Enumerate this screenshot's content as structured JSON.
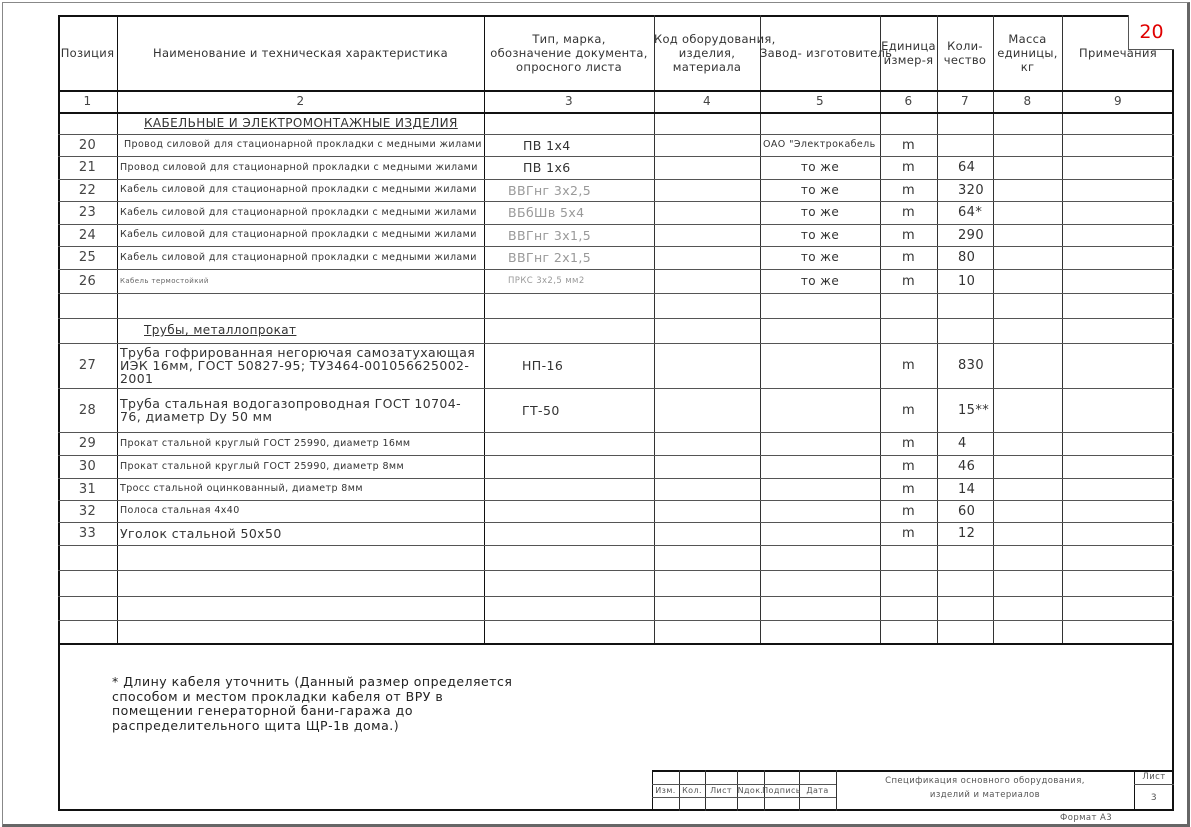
{
  "sheet_badge": "20",
  "headers": [
    "Позиция",
    "Наименование и техническая характеристика",
    "Тип, марка, обозначение документа, опросного листа",
    "Код оборудования, изделия, материала",
    "Завод- изготовитель",
    "Единица измер-я",
    "Коли- чество",
    "Масса единицы, кг",
    "Примечания"
  ],
  "column_numbers": [
    "1",
    "2",
    "3",
    "4",
    "5",
    "6",
    "7",
    "8",
    "9"
  ],
  "rows": [
    {
      "section": "КАБЕЛЬНЫЕ И ЭЛЕКТРОМОНТАЖНЫЕ ИЗДЕЛИЯ"
    },
    {
      "pos": "20",
      "name": "Провод силовой для стационарной прокладки с медными жилами",
      "type": "ПВ 1х4",
      "maker": "ОАО \"Электрокабель",
      "unit": "m",
      "qty": ""
    },
    {
      "pos": "21",
      "name": "Провод силовой для стационарной прокладки с медными жилами",
      "type": "ПВ 1х6",
      "maker": "то же",
      "unit": "m",
      "qty": "64"
    },
    {
      "pos": "22",
      "name": "Кабель силовой для стационарной прокладки с медными жилами",
      "type": "ВВГнг 3х2,5",
      "maker": "то же",
      "unit": "m",
      "qty": "320"
    },
    {
      "pos": "23",
      "name": "Кабель силовой для стационарной прокладки с медными жилами",
      "type": "ВБбШв 5х4",
      "maker": "то же",
      "unit": "m",
      "qty": "64*"
    },
    {
      "pos": "24",
      "name": "Кабель силовой для стационарной прокладки с медными жилами",
      "type": "ВВГнг 3х1,5",
      "maker": "то же",
      "unit": "m",
      "qty": "290"
    },
    {
      "pos": "25",
      "name": "Кабель силовой для стационарной прокладки с медными жилами",
      "type": "ВВГнг 2х1,5",
      "maker": "то же",
      "unit": "m",
      "qty": "80"
    },
    {
      "pos": "26",
      "name": "Кабель термостойкий",
      "type": "ПРКС 3х2,5 мм2",
      "maker": "то же",
      "unit": "m",
      "qty": "10"
    },
    {},
    {
      "section": "Трубы, металлопрокат"
    },
    {
      "pos": "27",
      "name": "Труба гофрированная негорючая самозатухающая ИЭК 16мм, ГОСТ 50827-95; ТУ3464-001056625002-2001",
      "type": "НП-16",
      "maker": "",
      "unit": "m",
      "qty": "830"
    },
    {
      "pos": "28",
      "name": "Труба стальная водогазопроводная ГОСТ 10704-76, диаметр      Dy 50 мм",
      "type": "ГТ-50",
      "maker": "",
      "unit": "m",
      "qty": "15**"
    },
    {
      "pos": "29",
      "name": "Прокат стальной круглый ГОСТ 25990, диаметр 16мм",
      "type": "",
      "maker": "",
      "unit": "m",
      "qty": "4"
    },
    {
      "pos": "30",
      "name": "Прокат стальной круглый ГОСТ 25990, диаметр 8мм",
      "type": "",
      "maker": "",
      "unit": "m",
      "qty": "46"
    },
    {
      "pos": "31",
      "name": "Тросс стальной оцинкованный, диаметр 8мм",
      "type": "",
      "maker": "",
      "unit": "m",
      "qty": "14"
    },
    {
      "pos": "32",
      "name": "Полоса стальная 4х40",
      "type": "",
      "maker": "",
      "unit": "m",
      "qty": "60"
    },
    {
      "pos": "33",
      "name": "Уголок стальной 50х50",
      "type": "",
      "maker": "",
      "unit": "m",
      "qty": "12"
    },
    {},
    {},
    {},
    {}
  ],
  "footnote": [
    "* Длину кабеля уточнить (Данный размер определяется",
    "способом и местом прокладки кабеля от ВРУ в",
    "помещении генераторной бани-гаража до",
    "распределительного щита ЩР-1в дома.)"
  ],
  "title_block": {
    "labels": [
      "Изм.",
      "Кол.",
      "Лист",
      "Nдок.",
      "Подпись",
      "Дата"
    ],
    "description": [
      "Спецификация основного оборудования,",
      "изделий и материалов"
    ],
    "sheet_label": "Лист",
    "sheet_number": "3",
    "format": "Формат А3"
  },
  "colors": {
    "badge": "#e00000",
    "line": "#111111"
  }
}
